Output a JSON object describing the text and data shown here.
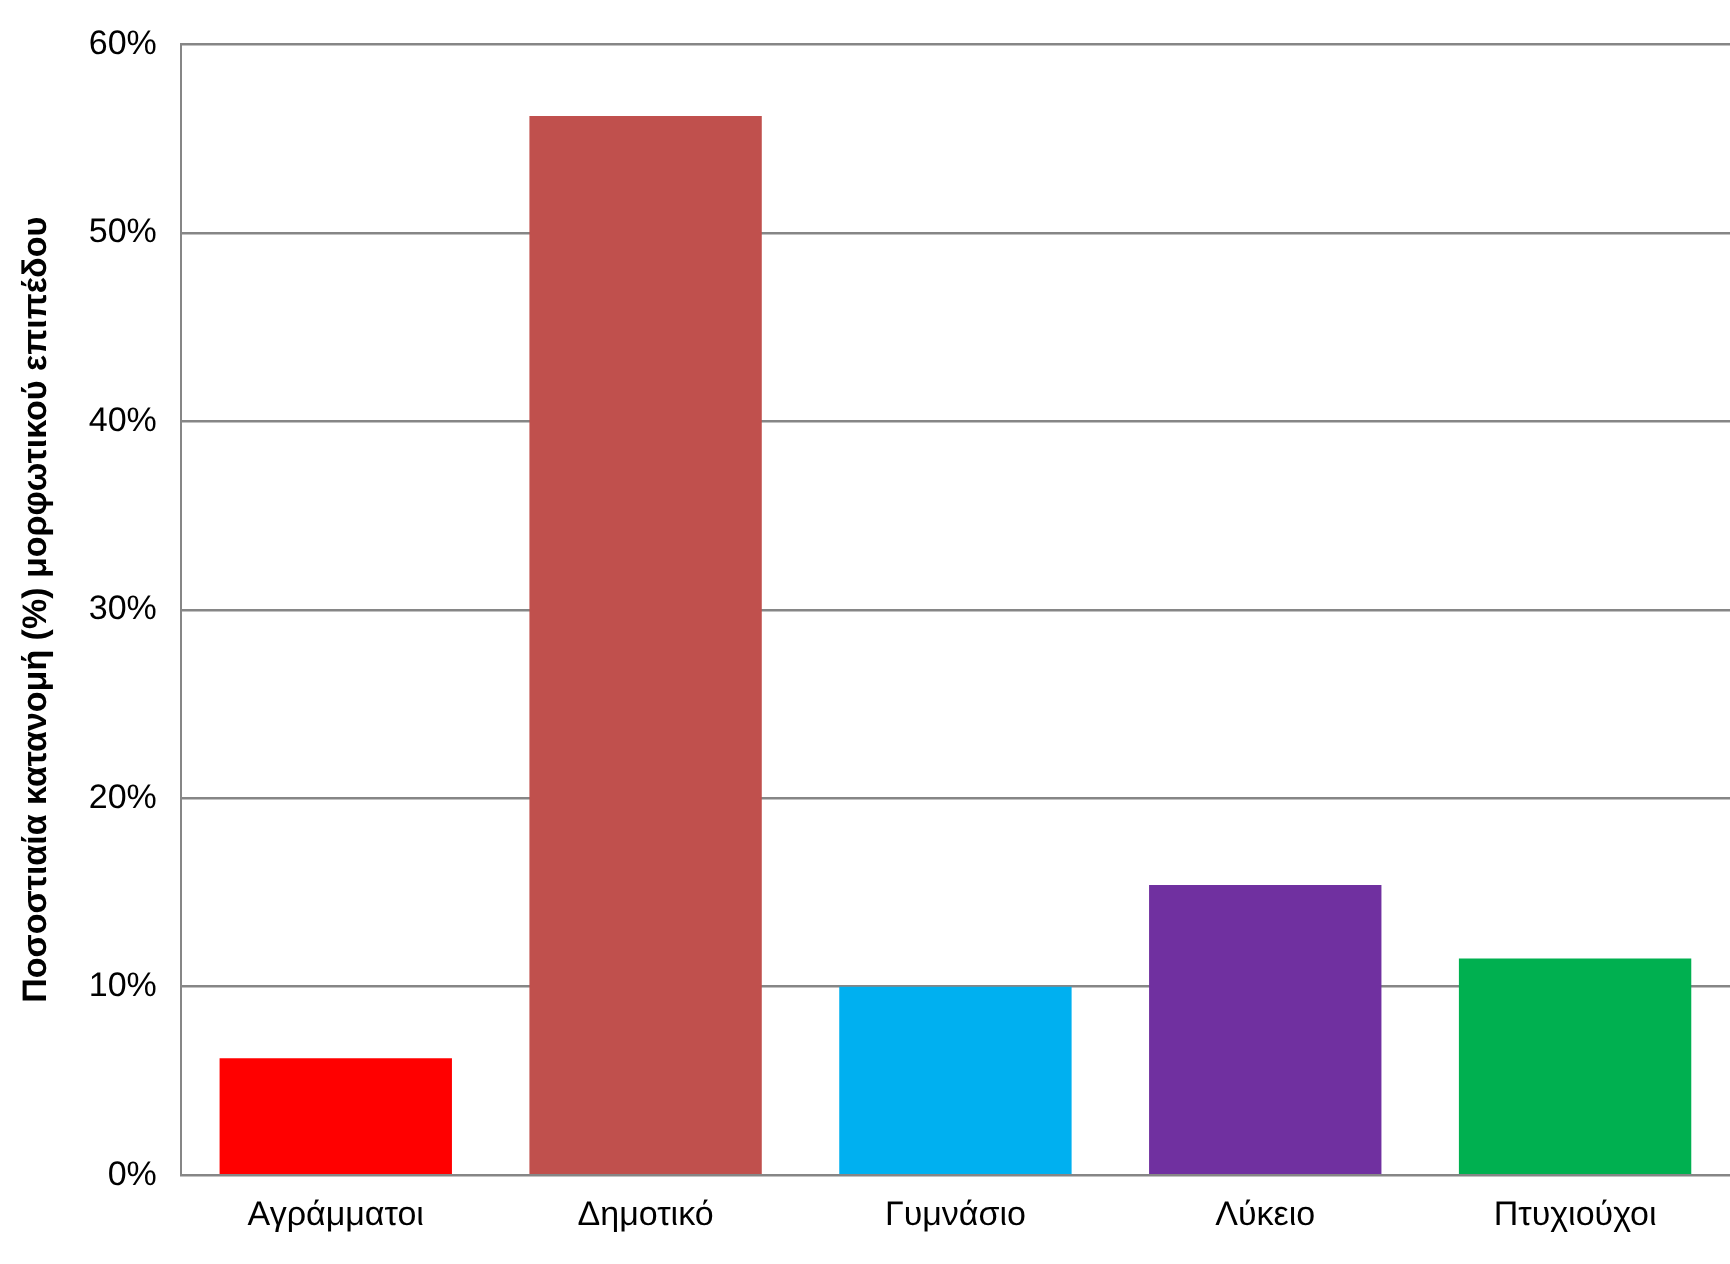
{
  "chart_data": {
    "type": "bar",
    "ylabel": "Ποσοστιαία κατανομή (%) μορφωτικού επιπέδου",
    "categories": [
      "Αγράμματοι",
      "Δημοτικό",
      "Γυμνάσιο",
      "Λύκειο",
      "Πτυχιούχοι"
    ],
    "values": [
      6.2,
      56.2,
      10.0,
      15.4,
      11.5
    ],
    "colors": [
      "#ff0000",
      "#c0504d",
      "#00b0f0",
      "#7030a0",
      "#00b050"
    ],
    "ylim": [
      0,
      60
    ],
    "yticks": [
      {
        "value": 0,
        "label": "0%"
      },
      {
        "value": 10,
        "label": "10%"
      },
      {
        "value": 20,
        "label": "20%"
      },
      {
        "value": 30,
        "label": "30%"
      },
      {
        "value": 40,
        "label": "40%"
      },
      {
        "value": 50,
        "label": "50%"
      },
      {
        "value": 60,
        "label": "60%"
      }
    ],
    "grid": "y",
    "legend": false
  }
}
